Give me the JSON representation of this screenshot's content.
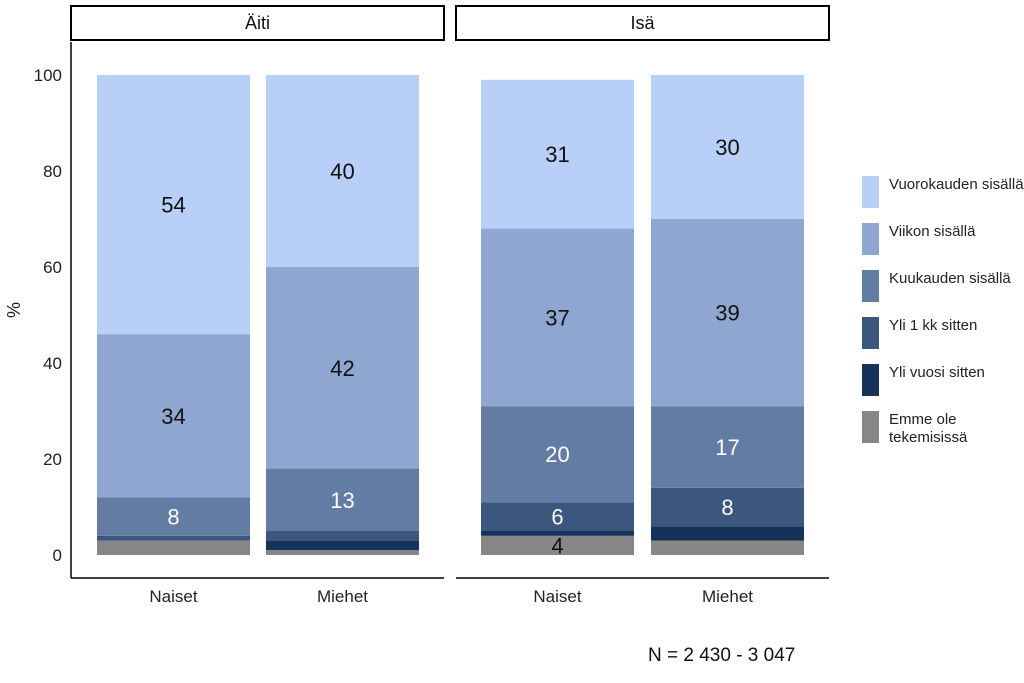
{
  "chart_data": {
    "type": "bar",
    "stacked": true,
    "ylabel": "%",
    "ylim": [
      0,
      100
    ],
    "yticks": [
      0,
      20,
      40,
      60,
      80,
      100
    ],
    "categories": [
      "Naiset",
      "Miehet"
    ],
    "panels": [
      {
        "title": "Äiti",
        "bars": [
          {
            "category": "Naiset",
            "values": [
              3,
              0,
              1,
              8,
              34,
              54
            ]
          },
          {
            "category": "Miehet",
            "values": [
              1,
              2,
              2,
              13,
              42,
              40
            ]
          }
        ]
      },
      {
        "title": "Isä",
        "bars": [
          {
            "category": "Naiset",
            "values": [
              4,
              1,
              6,
              20,
              37,
              31
            ]
          },
          {
            "category": "Miehet",
            "values": [
              3,
              3,
              8,
              17,
              39,
              30
            ]
          }
        ]
      }
    ],
    "series": [
      {
        "name": "Emme ole tekemisissä",
        "color": "#878787"
      },
      {
        "name": "Yli vuosi sitten",
        "color": "#17325a"
      },
      {
        "name": "Yli 1 kk sitten",
        "color": "#3c577e"
      },
      {
        "name": "Kuukauden sisällä",
        "color": "#637ca3"
      },
      {
        "name": "Viikon sisällä",
        "color": "#8ea6d0"
      },
      {
        "name": "Vuorokauden sisällä",
        "color": "#b8cff8"
      }
    ],
    "label_threshold": 3,
    "label_colors": [
      "#111111",
      "#ffffff",
      "#ffffff",
      "#ffffff",
      "#111111",
      "#111111"
    ]
  },
  "legend_order": [
    5,
    4,
    3,
    2,
    1,
    0
  ],
  "note": "N = 2 430 - 3 047"
}
